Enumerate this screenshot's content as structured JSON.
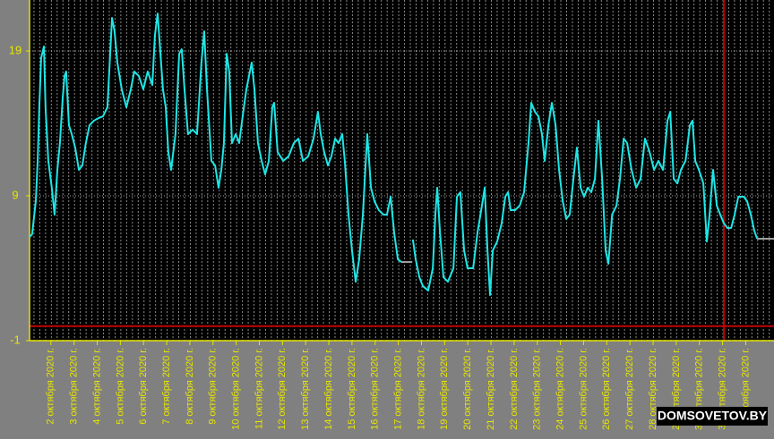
{
  "chart_data": {
    "type": "line",
    "watermark": "DOMSOVETOV.BY",
    "xlim": [
      1.08,
      33.22
    ],
    "ylim": [
      -1,
      22.52
    ],
    "yticks": [
      -1,
      9,
      19
    ],
    "xticks": [
      {
        "value": 2,
        "label": "2 октября 2020 г."
      },
      {
        "value": 3,
        "label": "3 октября 2020 г."
      },
      {
        "value": 4,
        "label": "4 октября 2020 г."
      },
      {
        "value": 5,
        "label": "5 октября 2020 г."
      },
      {
        "value": 6,
        "label": "6 октября 2020 г."
      },
      {
        "value": 7,
        "label": "7 октября 2020 г."
      },
      {
        "value": 8,
        "label": "8 октября 2020 г."
      },
      {
        "value": 9,
        "label": "9 октября 2020 г."
      },
      {
        "value": 10,
        "label": "10 октября 2020 г."
      },
      {
        "value": 11,
        "label": "11 октября 2020 г."
      },
      {
        "value": 12,
        "label": "12 октября 2020 г."
      },
      {
        "value": 13,
        "label": "13 октября 2020 г."
      },
      {
        "value": 14,
        "label": "14 октября 2020 г."
      },
      {
        "value": 15,
        "label": "15 октября 2020 г."
      },
      {
        "value": 16,
        "label": "16 октября 2020 г."
      },
      {
        "value": 17,
        "label": "17 октября 2020 г."
      },
      {
        "value": 18,
        "label": "18 октября 2020 г."
      },
      {
        "value": 19,
        "label": "19 октября 2020 г."
      },
      {
        "value": 20,
        "label": "20 октября 2020 г."
      },
      {
        "value": 21,
        "label": "21 октября 2020 г."
      },
      {
        "value": 22,
        "label": "22 октября 2020 г."
      },
      {
        "value": 23,
        "label": "23 октября 2020 г."
      },
      {
        "value": 24,
        "label": "24 октября 2020 г."
      },
      {
        "value": 25,
        "label": "25 октября 2020 г."
      },
      {
        "value": 26,
        "label": "26 октября 2020 г."
      },
      {
        "value": 27,
        "label": "27 октября 2020 г."
      },
      {
        "value": 28,
        "label": "28 октября 2020 г."
      },
      {
        "value": 29,
        "label": "29 октября 2020 г."
      },
      {
        "value": 30,
        "label": "30 октября 2020 г."
      },
      {
        "value": 31,
        "label": "31 октября 2020 г."
      },
      {
        "value": 32,
        "label": "1 ноября 2020 г."
      }
    ],
    "grid": true,
    "reference_lines": {
      "color": "#c00000",
      "y": 0,
      "x": 31.06
    },
    "series": [
      {
        "color": "#1ee6e6",
        "x": [
          1.08,
          1.19,
          1.35,
          1.43,
          1.5,
          1.58,
          1.7,
          1.77,
          1.89,
          2.04,
          2.16,
          2.28,
          2.39,
          2.51,
          2.59,
          2.66,
          2.78,
          2.9,
          3.05,
          3.21,
          3.36,
          3.51,
          3.67,
          3.86,
          4.06,
          4.25,
          4.44,
          4.56,
          4.64,
          4.75,
          4.87,
          5.06,
          5.26,
          5.45,
          5.6,
          5.8,
          5.99,
          6.18,
          6.38,
          6.49,
          6.61,
          6.73,
          6.84,
          6.96,
          7.07,
          7.19,
          7.38,
          7.54,
          7.65,
          7.77,
          7.92,
          8.12,
          8.31,
          8.5,
          8.62,
          8.74,
          8.93,
          9.09,
          9.24,
          9.36,
          9.47,
          9.59,
          9.7,
          9.82,
          9.98,
          10.13,
          10.28,
          10.44,
          10.67,
          10.79,
          10.94,
          11.1,
          11.25,
          11.41,
          11.56,
          11.64,
          11.79,
          12.03,
          12.26,
          12.49,
          12.69,
          12.88,
          13.11,
          13.34,
          13.53,
          13.65,
          13.8,
          13.96,
          14.11,
          14.27,
          14.42,
          14.58,
          14.69,
          14.85,
          15.0,
          15.16,
          15.31,
          15.47,
          15.66,
          15.82,
          15.97,
          16.16,
          16.36,
          16.51,
          16.67,
          16.82,
          16.98,
          17.13,
          17.6,
          17.63,
          17.75,
          17.91,
          18.06,
          18.29,
          18.49,
          18.6,
          18.68,
          18.8,
          18.95,
          19.14,
          19.38,
          19.53,
          19.68,
          19.84,
          19.99,
          20.23,
          20.42,
          20.61,
          20.73,
          20.85,
          20.96,
          21.08,
          21.27,
          21.46,
          21.62,
          21.74,
          21.85,
          22.04,
          22.24,
          22.43,
          22.62,
          22.74,
          22.9,
          23.05,
          23.2,
          23.32,
          23.48,
          23.63,
          23.79,
          23.94,
          24.1,
          24.25,
          24.4,
          24.56,
          24.71,
          24.87,
          25.02,
          25.18,
          25.33,
          25.49,
          25.64,
          25.8,
          25.95,
          26.07,
          26.23,
          26.42,
          26.57,
          26.73,
          26.88,
          27.07,
          27.27,
          27.46,
          27.65,
          27.85,
          28.04,
          28.23,
          28.43,
          28.62,
          28.74,
          28.89,
          29.05,
          29.2,
          29.4,
          29.59,
          29.7,
          29.82,
          29.98,
          30.17,
          30.32,
          30.44,
          30.59,
          30.75,
          30.9,
          31.06,
          31.21,
          31.37,
          31.52,
          31.68,
          31.91,
          32.06,
          32.22,
          32.37,
          32.49
        ],
        "values": [
          6.16,
          6.35,
          8.63,
          11.41,
          15.11,
          18.51,
          19.31,
          15.11,
          11.41,
          9.56,
          7.7,
          10.79,
          12.64,
          15.73,
          17.27,
          17.58,
          13.88,
          13.26,
          12.33,
          10.79,
          11.1,
          12.64,
          13.88,
          14.19,
          14.37,
          14.49,
          15.11,
          18.81,
          21.28,
          20.36,
          18.2,
          16.35,
          15.11,
          16.35,
          17.58,
          17.27,
          16.35,
          17.58,
          16.65,
          20.05,
          21.59,
          18.81,
          16.35,
          15.11,
          12.02,
          10.79,
          13.26,
          18.81,
          19.12,
          16.35,
          13.26,
          13.57,
          13.26,
          18.2,
          20.36,
          16.35,
          11.41,
          11.1,
          9.56,
          10.79,
          12.64,
          18.81,
          17.58,
          12.64,
          13.26,
          12.64,
          14.49,
          16.35,
          18.2,
          16.35,
          12.64,
          11.41,
          10.48,
          11.41,
          15.11,
          15.42,
          12.02,
          11.41,
          11.72,
          12.64,
          12.95,
          11.41,
          11.72,
          12.95,
          14.8,
          13.26,
          12.02,
          11.1,
          11.72,
          12.95,
          12.64,
          13.26,
          11.41,
          7.7,
          5.23,
          3.07,
          4.62,
          7.7,
          13.26,
          9.56,
          8.63,
          8.01,
          7.7,
          7.7,
          8.94,
          6.47,
          4.62,
          4.43,
          null,
          5.98,
          4.62,
          3.38,
          2.77,
          2.46,
          4.0,
          7.7,
          9.56,
          6.47,
          3.38,
          3.07,
          4.0,
          8.94,
          9.25,
          5.23,
          4.0,
          4.0,
          6.47,
          8.32,
          9.56,
          5.23,
          2.15,
          5.23,
          5.85,
          7.09,
          8.94,
          9.25,
          8.01,
          8.01,
          8.32,
          9.25,
          12.64,
          15.42,
          14.8,
          14.49,
          13.26,
          11.41,
          13.88,
          15.42,
          13.88,
          10.79,
          8.63,
          7.4,
          7.7,
          10.17,
          12.33,
          9.56,
          8.94,
          9.56,
          9.25,
          10.17,
          14.19,
          10.17,
          5.23,
          4.31,
          7.7,
          8.32,
          10.17,
          12.95,
          12.64,
          10.79,
          9.56,
          10.17,
          12.95,
          12.02,
          10.79,
          11.41,
          10.79,
          14.19,
          14.8,
          10.17,
          9.86,
          10.79,
          11.41,
          13.88,
          14.19,
          11.41,
          10.79,
          9.86,
          5.85,
          7.7,
          10.79,
          8.32,
          7.7,
          7.09,
          6.78,
          6.78,
          7.7,
          8.94,
          8.94,
          8.63,
          7.7,
          6.59,
          6.04
        ]
      },
      {
        "color": "#a0a0a0",
        "x": [
          17.13,
          17.6
        ],
        "values": [
          4.43,
          4.43
        ]
      },
      {
        "color": "#a0a0a0",
        "x": [
          32.49,
          33.22
        ],
        "values": [
          6.04,
          6.04
        ]
      }
    ]
  }
}
